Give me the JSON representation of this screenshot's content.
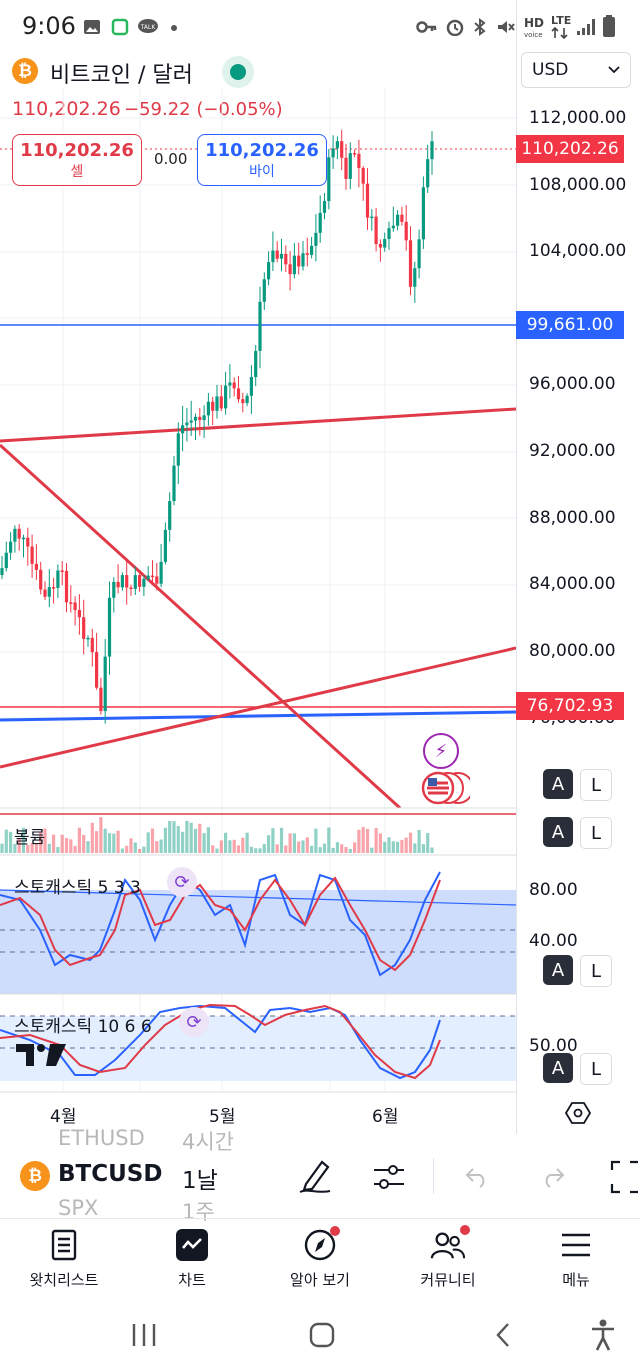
{
  "status_bar": {
    "time": "9:06",
    "network": "LTE"
  },
  "header": {
    "coin_glyph": "₿",
    "symbol_title": "비트코인 / 달러",
    "last_price": "110,202.26",
    "change": "−59.22 (−0.05%)"
  },
  "trade": {
    "sell_price": "110,202.26",
    "sell_label": "셀",
    "spread": "0.00",
    "buy_price": "110,202.26",
    "buy_label": "바이"
  },
  "price_axis": {
    "currency": "USD",
    "ticks": [
      "112,000.00",
      "108,000.00",
      "104,000.00",
      "96,000.00",
      "92,000.00",
      "88,000.00",
      "84,000.00",
      "80,000.00",
      "76,000.00"
    ],
    "current_price_tag": "110,202.26",
    "line_tag_1": "99,661.00",
    "line_tag_2": "76,702.93"
  },
  "panels": {
    "volume": "볼륨",
    "stoch1": "스토캐스틱 5 3 3",
    "stoch1_levels": [
      "80.00",
      "40.00"
    ],
    "stoch2": "스토캐스틱 10 6 6",
    "stoch2_level": "50.00",
    "auto_label": "A",
    "log_label": "L"
  },
  "time_axis": {
    "months": [
      "4월",
      "5월",
      "6월"
    ]
  },
  "toolbar": {
    "ghost_above_symbol": "ETHUSD",
    "ghost_above_interval": "4시간",
    "symbol": "BTCUSD",
    "interval": "1날",
    "ghost_below_symbol": "SPX",
    "ghost_below_interval": "1주"
  },
  "bottom_nav": {
    "items": [
      "왓치리스트",
      "차트",
      "알아 보기",
      "커뮤니티",
      "메뉴"
    ]
  },
  "colors": {
    "up": "#089981",
    "down": "#f23645",
    "accent_blue": "#2962ff",
    "accent_red": "#e03a48"
  }
}
